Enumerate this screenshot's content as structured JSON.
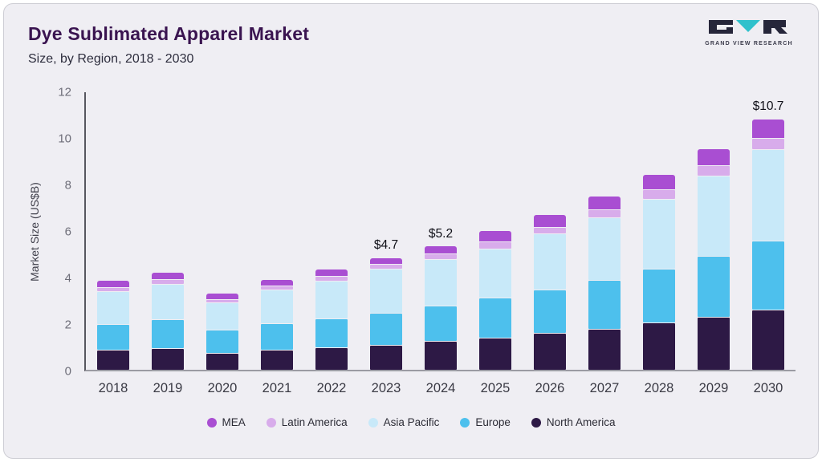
{
  "header": {
    "title": "Dye Sublimated Apparel Market",
    "subtitle": "Size, by Region, 2018 - 2030"
  },
  "logo": {
    "text": "GRAND VIEW RESEARCH"
  },
  "chart_data": {
    "type": "bar",
    "stacked": true,
    "title": "Dye Sublimated Apparel Market Size, by Region, 2018 - 2030",
    "ylabel": "Market Size (US$B)",
    "ylim": [
      0,
      12
    ],
    "yticks": [
      0,
      2,
      4,
      6,
      8,
      10,
      12
    ],
    "grid": false,
    "legend_position": "bottom",
    "categories": [
      "2018",
      "2019",
      "2020",
      "2021",
      "2022",
      "2023",
      "2024",
      "2025",
      "2026",
      "2027",
      "2028",
      "2029",
      "2030"
    ],
    "series": [
      {
        "name": "North America",
        "color": "#2d1945",
        "values": [
          0.85,
          0.9,
          0.7,
          0.85,
          0.95,
          1.05,
          1.2,
          1.35,
          1.55,
          1.75,
          2.0,
          2.25,
          2.55
        ]
      },
      {
        "name": "Europe",
        "color": "#4dc0ed",
        "values": [
          1.05,
          1.2,
          0.95,
          1.1,
          1.2,
          1.35,
          1.5,
          1.7,
          1.85,
          2.05,
          2.3,
          2.6,
          2.95
        ]
      },
      {
        "name": "Asia Pacific",
        "color": "#c8e9f9",
        "values": [
          1.4,
          1.5,
          1.15,
          1.4,
          1.6,
          1.85,
          2.0,
          2.1,
          2.4,
          2.7,
          3.0,
          3.45,
          3.95
        ]
      },
      {
        "name": "Latin America",
        "color": "#d8aceb",
        "values": [
          0.15,
          0.17,
          0.13,
          0.15,
          0.17,
          0.18,
          0.2,
          0.25,
          0.25,
          0.3,
          0.35,
          0.4,
          0.45
        ]
      },
      {
        "name": "MEA",
        "color": "#a94ed2",
        "values": [
          0.25,
          0.28,
          0.22,
          0.25,
          0.28,
          0.27,
          0.3,
          0.45,
          0.5,
          0.55,
          0.65,
          0.7,
          0.8
        ]
      }
    ],
    "totals": [
      3.7,
      4.05,
      3.15,
      3.75,
      4.2,
      4.7,
      5.2,
      5.85,
      6.55,
      7.35,
      8.3,
      9.4,
      10.7
    ],
    "annotations": [
      {
        "category": "2023",
        "label": "$4.7"
      },
      {
        "category": "2024",
        "label": "$5.2"
      },
      {
        "category": "2030",
        "label": "$10.7"
      }
    ],
    "legend": [
      "MEA",
      "Latin America",
      "Asia Pacific",
      "Europe",
      "North America"
    ],
    "colors": {
      "accent_teal": "#2fc1cc",
      "title_purple": "#3a1450",
      "card_background": "#efeef3"
    }
  }
}
